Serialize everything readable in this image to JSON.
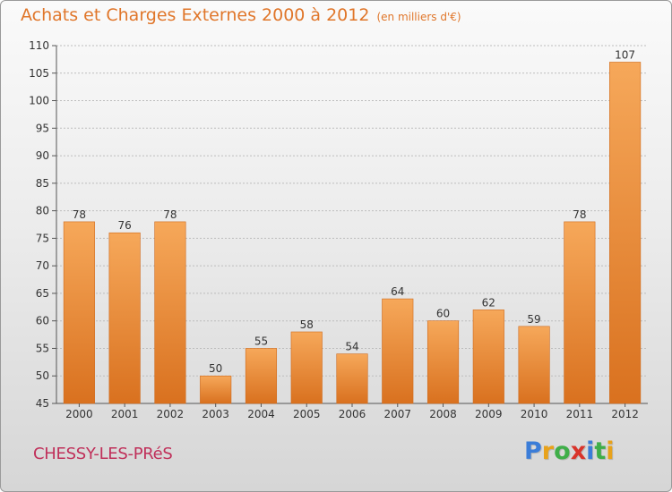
{
  "title": "Achats et Charges Externes 2000 à 2012",
  "unit_note": "(en milliers d'€)",
  "town": "CHESSY-LES-PRéS",
  "logo": {
    "text": "Proxiti",
    "letter_colors": [
      "#3b7dd8",
      "#e8a21a",
      "#3fae49",
      "#d9342b",
      "#3b7dd8",
      "#3fae49",
      "#e8a21a"
    ]
  },
  "colors": {
    "bar_top": "#f6a85a",
    "bar_bottom": "#d9711f",
    "bar_edge": "#cf6a1c",
    "grid": "#bdbdbd",
    "axis": "#555555",
    "title": "#e0762a",
    "town": "#c0305a"
  },
  "chart_data": {
    "type": "bar",
    "title": "Achats et Charges Externes 2000 à 2012",
    "subtitle": "(en milliers d'€)",
    "xlabel": "",
    "ylabel": "",
    "categories": [
      "2000",
      "2001",
      "2002",
      "2003",
      "2004",
      "2005",
      "2006",
      "2007",
      "2008",
      "2009",
      "2010",
      "2011",
      "2012"
    ],
    "values": [
      78,
      76,
      78,
      50,
      55,
      58,
      54,
      64,
      60,
      62,
      59,
      78,
      107
    ],
    "ylim": [
      45,
      110
    ],
    "yticks": [
      45,
      50,
      55,
      60,
      65,
      70,
      75,
      80,
      85,
      90,
      95,
      100,
      105,
      110
    ],
    "grid": true,
    "data_labels": true
  }
}
